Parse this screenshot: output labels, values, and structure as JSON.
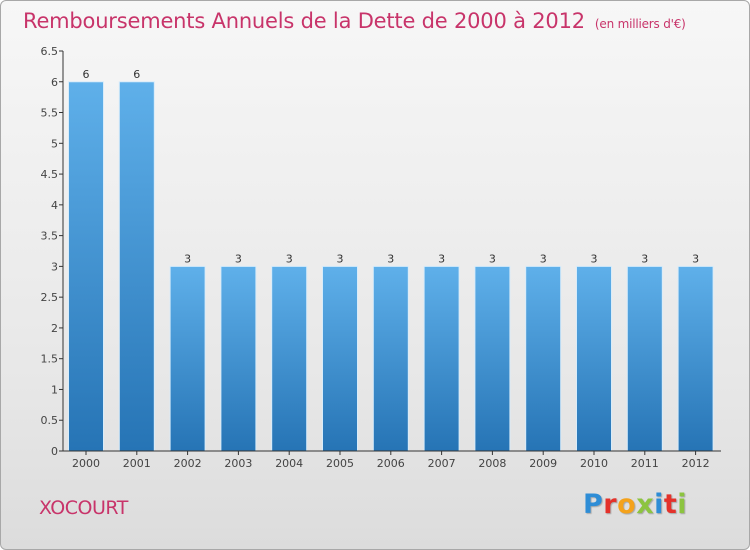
{
  "page": {
    "title": "Remboursements Annuels de la Dette de 2000 à 2012",
    "subtitle": "(en milliers d'€)",
    "commune": "XOCOURT",
    "logo": {
      "text": "Proxiti",
      "letters": [
        {
          "ch": "P",
          "color": "#2e8dd6"
        },
        {
          "ch": "r",
          "color": "#e4322b"
        },
        {
          "ch": "o",
          "color": "#f4a21b"
        },
        {
          "ch": "x",
          "color": "#8cc43f"
        },
        {
          "ch": "i",
          "color": "#2e8dd6"
        },
        {
          "ch": "t",
          "color": "#e4322b"
        },
        {
          "ch": "i",
          "color": "#8cc43f"
        }
      ]
    }
  },
  "colors": {
    "title": "#c8346a",
    "bar_light": "#5fb0ea",
    "bar_dark": "#2674b5",
    "axis": "#333333"
  },
  "chart_data": {
    "type": "bar",
    "title": "Remboursements Annuels de la Dette de 2000 à 2012",
    "subtitle": "(en milliers d'€)",
    "xlabel": "",
    "ylabel": "",
    "categories": [
      "2000",
      "2001",
      "2002",
      "2003",
      "2004",
      "2005",
      "2006",
      "2007",
      "2008",
      "2009",
      "2010",
      "2011",
      "2012"
    ],
    "values": [
      6,
      6,
      3,
      3,
      3,
      3,
      3,
      3,
      3,
      3,
      3,
      3,
      3
    ],
    "value_labels": [
      "6",
      "6",
      "3",
      "3",
      "3",
      "3",
      "3",
      "3",
      "3",
      "3",
      "3",
      "3",
      "3"
    ],
    "ylim": [
      0,
      6.5
    ],
    "yticks": [
      0,
      0.5,
      1,
      1.5,
      2,
      2.5,
      3,
      3.5,
      4,
      4.5,
      5,
      5.5,
      6,
      6.5
    ],
    "ytick_labels": [
      "0",
      "0.5",
      "1",
      "1.5",
      "2",
      "2.5",
      "3",
      "3.5",
      "4",
      "4.5",
      "5",
      "5.5",
      "6",
      "6.5"
    ],
    "grid": false,
    "legend": "none"
  }
}
